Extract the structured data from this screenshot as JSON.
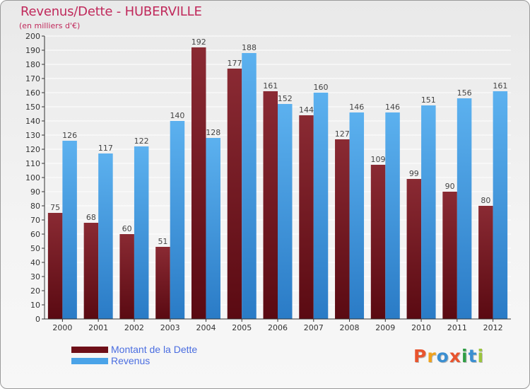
{
  "chart_data": {
    "type": "bar",
    "title": "Revenus/Dette - HUBERVILLE",
    "subtitle": "(en milliers d'€)",
    "categories": [
      "2000",
      "2001",
      "2002",
      "2003",
      "2004",
      "2005",
      "2006",
      "2007",
      "2008",
      "2009",
      "2010",
      "2011",
      "2012"
    ],
    "series": [
      {
        "name": "Montant de la Dette",
        "color": "#7a1f28",
        "values": [
          75,
          68,
          60,
          51,
          192,
          177,
          161,
          144,
          127,
          109,
          99,
          90,
          80
        ]
      },
      {
        "name": "Revenus",
        "color": "#4aa3e8",
        "values": [
          126,
          117,
          122,
          140,
          128,
          188,
          152,
          160,
          146,
          146,
          151,
          156,
          161
        ]
      }
    ],
    "ylim": [
      0,
      200
    ],
    "ytick_step": 10,
    "grid": true,
    "legend": "bottom-left"
  },
  "logo": {
    "text": "Proxiti",
    "colors": [
      "#e8542e",
      "#f0a21c",
      "#3b8fd1",
      "#e8542e",
      "#2f9e44",
      "#3b8fd1",
      "#9bc53d"
    ]
  }
}
